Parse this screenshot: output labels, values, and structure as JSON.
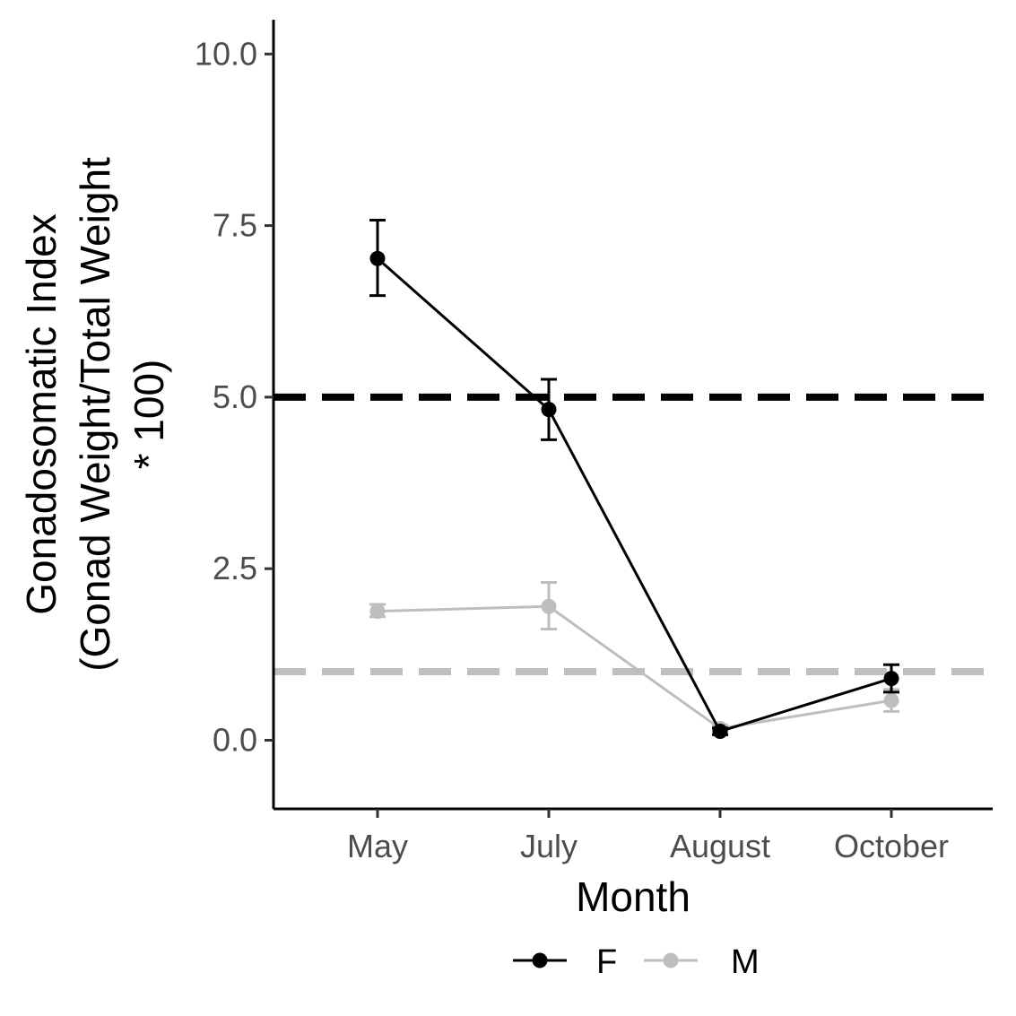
{
  "chart_data": {
    "type": "line",
    "title": "",
    "xlabel": "Month",
    "ylabel_lines": [
      "Gonadosomatic Index",
      "(Gonad Weight/Total Weight",
      "* 100)"
    ],
    "categories": [
      "May",
      "July",
      "August",
      "October"
    ],
    "ylim": [
      -1.0,
      10.5
    ],
    "yticks": [
      0.0,
      2.5,
      5.0,
      7.5,
      10.0
    ],
    "ytick_labels": [
      "0.0",
      "2.5",
      "5.0",
      "7.5",
      "10.0"
    ],
    "grid": false,
    "legend_position": "bottom",
    "series": [
      {
        "name": "F",
        "color": "#000000",
        "values": [
          7.02,
          4.82,
          0.13,
          0.9
        ],
        "error_low": [
          6.48,
          4.38,
          0.08,
          0.7
        ],
        "error_high": [
          7.58,
          5.26,
          0.18,
          1.1
        ]
      },
      {
        "name": "M",
        "color": "#bebebe",
        "values": [
          1.88,
          1.95,
          0.17,
          0.58
        ],
        "error_low": [
          1.8,
          1.62,
          0.12,
          0.42
        ],
        "error_high": [
          1.98,
          2.3,
          0.22,
          0.74
        ]
      }
    ],
    "reference_lines": [
      {
        "y": 5.0,
        "color": "#000000",
        "style": "dashed"
      },
      {
        "y": 1.0,
        "color": "#bebebe",
        "style": "dashed"
      }
    ]
  }
}
